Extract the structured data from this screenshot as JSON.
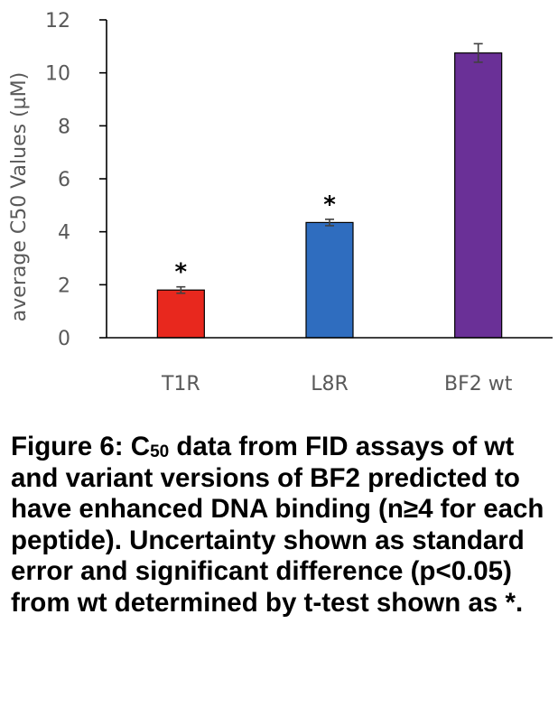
{
  "chart_data": {
    "type": "bar",
    "categories": [
      "T1R",
      "L8R",
      "BF2 wt"
    ],
    "values": [
      1.8,
      4.35,
      10.75
    ],
    "errors": [
      0.12,
      0.12,
      0.35
    ],
    "significance": [
      "*",
      "*",
      ""
    ],
    "colors": [
      "#E8281E",
      "#2F6DBF",
      "#6A3097"
    ],
    "ylabel": "average C50 Values (µM)",
    "ylim": [
      0,
      12
    ],
    "yticks": [
      0,
      2,
      4,
      6,
      8,
      10,
      12
    ],
    "grid": false,
    "legend": "none"
  },
  "caption": {
    "prefix": "Figure 6: C",
    "subscript": "50",
    "suffix": " data from FID assays of wt and variant versions of BF2 predicted to have enhanced DNA binding (n≥4 for each peptide). Uncertainty shown as standard error and significant difference (p<0.05) from wt determined by t-test shown as *."
  }
}
